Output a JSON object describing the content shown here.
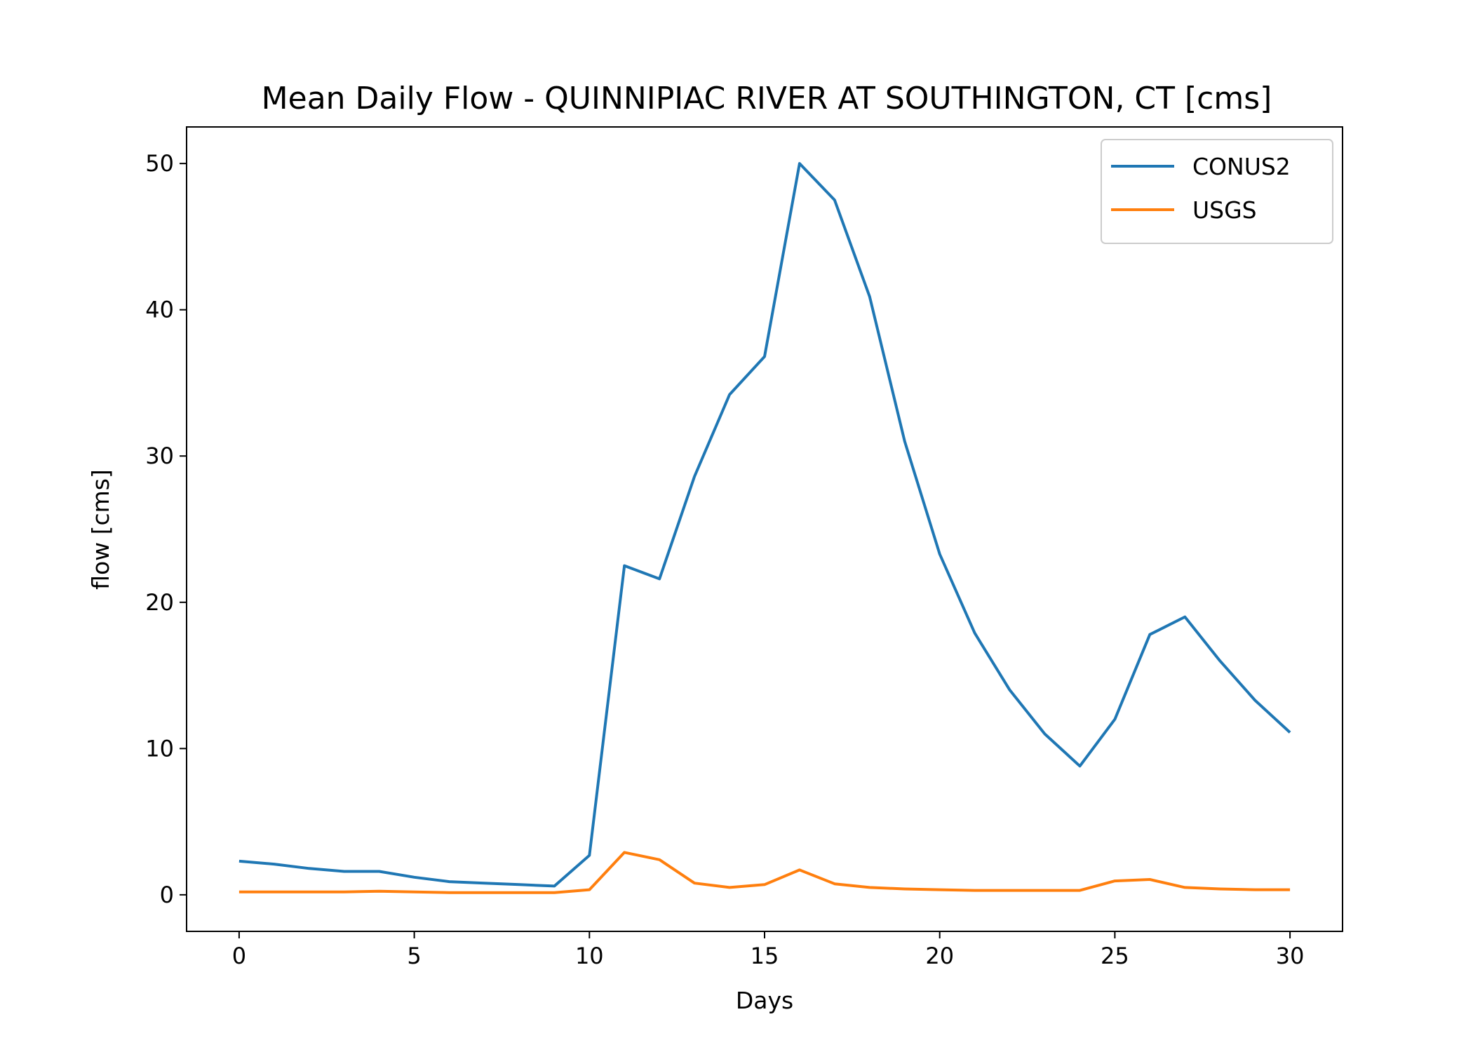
{
  "chart_data": {
    "type": "line",
    "title": "Mean Daily Flow - QUINNIPIAC RIVER AT SOUTHINGTON, CT [cms]",
    "xlabel": "Days",
    "ylabel": "flow [cms]",
    "xlim": [
      -1.5,
      31.5
    ],
    "ylim": [
      -2.5,
      52.5
    ],
    "xticks": [
      0,
      5,
      10,
      15,
      20,
      25,
      30
    ],
    "yticks": [
      0,
      10,
      20,
      30,
      40,
      50
    ],
    "grid": false,
    "legend_position": "top-right",
    "x": [
      0,
      1,
      2,
      3,
      4,
      5,
      6,
      7,
      8,
      9,
      10,
      11,
      12,
      13,
      14,
      15,
      16,
      17,
      18,
      19,
      20,
      21,
      22,
      23,
      24,
      25,
      26,
      27,
      28,
      29,
      30
    ],
    "series": [
      {
        "name": "CONUS2",
        "color": "#1f77b4",
        "values": [
          2.3,
          2.1,
          1.8,
          1.6,
          1.6,
          1.2,
          0.9,
          0.8,
          0.7,
          0.6,
          2.7,
          22.5,
          21.6,
          28.6,
          34.2,
          36.8,
          50.0,
          47.5,
          40.9,
          31.0,
          23.3,
          17.9,
          14.0,
          11.0,
          8.8,
          12.0,
          17.8,
          19.0,
          16.0,
          13.3,
          11.1
        ]
      },
      {
        "name": "USGS",
        "color": "#ff7f0e",
        "values": [
          0.2,
          0.2,
          0.2,
          0.2,
          0.25,
          0.2,
          0.15,
          0.15,
          0.15,
          0.15,
          0.35,
          2.9,
          2.4,
          0.8,
          0.5,
          0.7,
          1.7,
          0.75,
          0.5,
          0.4,
          0.35,
          0.3,
          0.3,
          0.3,
          0.3,
          0.95,
          1.05,
          0.5,
          0.4,
          0.35,
          0.35
        ]
      }
    ]
  }
}
